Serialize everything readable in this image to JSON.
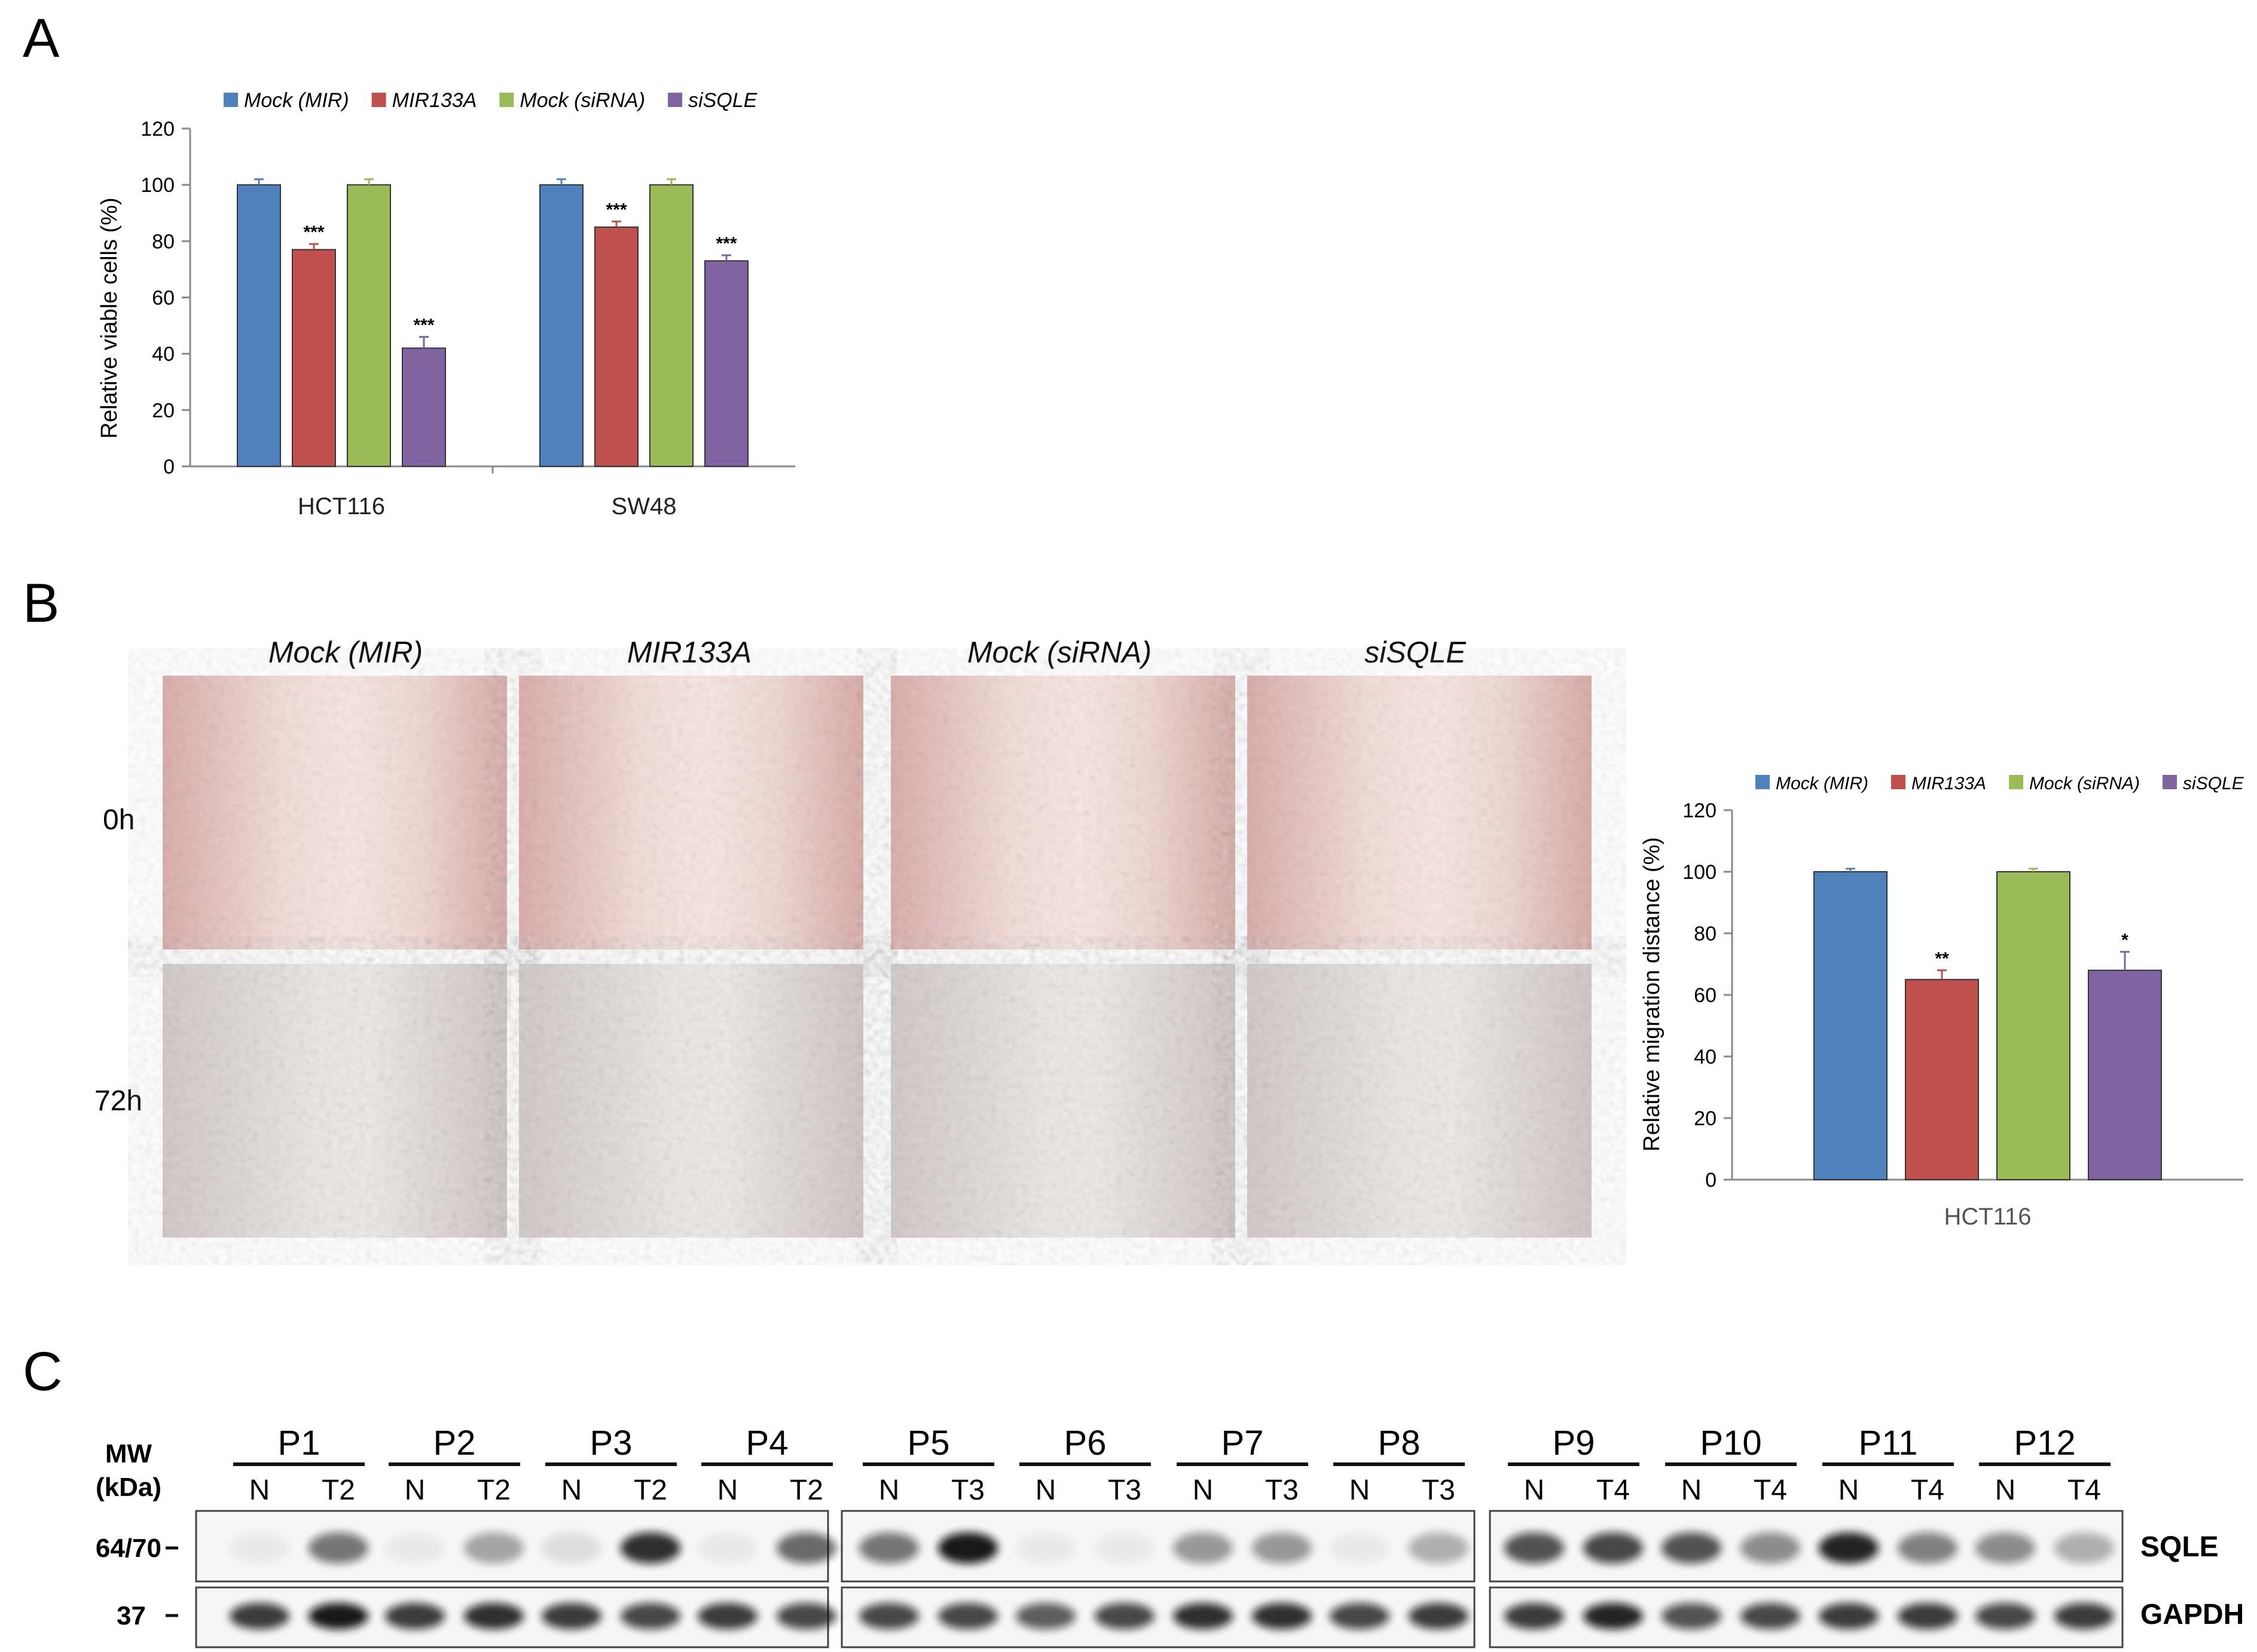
{
  "panels": {
    "a": {
      "label": "A"
    },
    "b": {
      "label": "B",
      "row_labels": [
        "0h",
        "72h"
      ],
      "column_titles": [
        "Mock (MIR)",
        "MIR133A",
        "Mock (siRNA)",
        "siSQLE"
      ]
    },
    "c": {
      "label": "C",
      "mw_label_line1": "MW",
      "mw_label_line2": "(kDa)",
      "mw_markers": [
        "64/70",
        "37"
      ],
      "band_labels": [
        "SQLE",
        "GAPDH"
      ],
      "patients": [
        {
          "id": "P1",
          "lanes": [
            "N",
            "T2"
          ]
        },
        {
          "id": "P2",
          "lanes": [
            "N",
            "T2"
          ]
        },
        {
          "id": "P3",
          "lanes": [
            "N",
            "T2"
          ]
        },
        {
          "id": "P4",
          "lanes": [
            "N",
            "T2"
          ]
        },
        {
          "id": "P5",
          "lanes": [
            "N",
            "T3"
          ]
        },
        {
          "id": "P6",
          "lanes": [
            "N",
            "T3"
          ]
        },
        {
          "id": "P7",
          "lanes": [
            "N",
            "T3"
          ]
        },
        {
          "id": "P8",
          "lanes": [
            "N",
            "T3"
          ]
        },
        {
          "id": "P9",
          "lanes": [
            "N",
            "T4"
          ]
        },
        {
          "id": "P10",
          "lanes": [
            "N",
            "T4"
          ]
        },
        {
          "id": "P11",
          "lanes": [
            "N",
            "T4"
          ]
        },
        {
          "id": "P12",
          "lanes": [
            "N",
            "T4"
          ]
        }
      ],
      "sqle_intensity": [
        0.05,
        0.55,
        0.05,
        0.35,
        0.1,
        0.85,
        0.05,
        0.6,
        0.55,
        0.95,
        0.05,
        0.05,
        0.4,
        0.4,
        0.05,
        0.3,
        0.7,
        0.75,
        0.7,
        0.45,
        0.9,
        0.5,
        0.45,
        0.3
      ],
      "gapdh_intensity": [
        0.8,
        0.95,
        0.8,
        0.85,
        0.8,
        0.75,
        0.8,
        0.75,
        0.75,
        0.75,
        0.65,
        0.75,
        0.85,
        0.85,
        0.75,
        0.8,
        0.8,
        0.9,
        0.7,
        0.75,
        0.8,
        0.8,
        0.75,
        0.8
      ]
    }
  },
  "colors": {
    "mock_mir": "#4F81BD",
    "mir133a": "#C0504D",
    "mock_sirna": "#9BBB59",
    "sisqle": "#8064A2"
  },
  "chart_data": [
    {
      "type": "bar",
      "title": "",
      "xlabel": "",
      "ylabel": "Relative viable cells (%)",
      "ylim": [
        0,
        120
      ],
      "yticks": [
        0,
        20,
        40,
        60,
        80,
        100,
        120
      ],
      "categories": [
        "HCT116",
        "SW48"
      ],
      "legend": "top",
      "series": [
        {
          "name": "Mock (MIR)",
          "values": [
            100,
            100
          ],
          "errors": [
            2,
            2
          ],
          "sig": [
            "",
            ""
          ]
        },
        {
          "name": "MIR133A",
          "values": [
            77,
            85
          ],
          "errors": [
            2,
            2
          ],
          "sig": [
            "***",
            "***"
          ]
        },
        {
          "name": "Mock (siRNA)",
          "values": [
            100,
            100
          ],
          "errors": [
            2,
            2
          ],
          "sig": [
            "",
            ""
          ]
        },
        {
          "name": "siSQLE",
          "values": [
            42,
            73
          ],
          "errors": [
            4,
            2
          ],
          "sig": [
            "***",
            "***"
          ]
        }
      ]
    },
    {
      "type": "bar",
      "title": "",
      "xlabel": "",
      "ylabel": "Relative migration distance (%)",
      "ylim": [
        0,
        120
      ],
      "yticks": [
        0,
        20,
        40,
        60,
        80,
        100,
        120
      ],
      "categories": [
        "HCT116"
      ],
      "legend": "top",
      "series": [
        {
          "name": "Mock (MIR)",
          "values": [
            100
          ],
          "errors": [
            1
          ],
          "sig": [
            ""
          ]
        },
        {
          "name": "MIR133A",
          "values": [
            65
          ],
          "errors": [
            3
          ],
          "sig": [
            "**"
          ]
        },
        {
          "name": "Mock (siRNA)",
          "values": [
            100
          ],
          "errors": [
            1
          ],
          "sig": [
            ""
          ]
        },
        {
          "name": "siSQLE",
          "values": [
            68
          ],
          "errors": [
            6
          ],
          "sig": [
            "*"
          ]
        }
      ]
    }
  ]
}
